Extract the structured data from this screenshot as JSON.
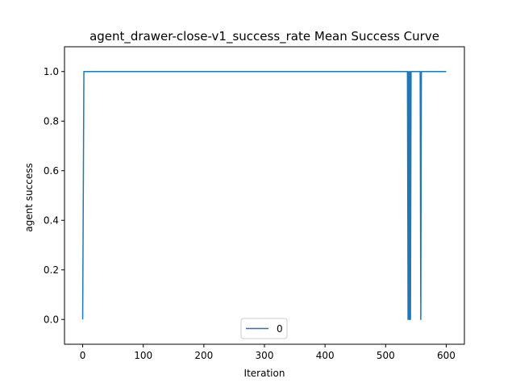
{
  "chart_data": {
    "type": "line",
    "title": "agent_drawer-close-v1_success_rate Mean Success Curve",
    "xlabel": "Iteration",
    "ylabel": "agent success",
    "xlim": [
      -30,
      630
    ],
    "ylim": [
      -0.1,
      1.1
    ],
    "x_ticks": [
      0,
      100,
      200,
      300,
      400,
      500,
      600
    ],
    "y_ticks": [
      0.0,
      0.2,
      0.4,
      0.6,
      0.8,
      1.0
    ],
    "x_tick_labels": [
      "0",
      "100",
      "200",
      "300",
      "400",
      "500",
      "600"
    ],
    "y_tick_labels": [
      "0.0",
      "0.2",
      "0.4",
      "0.6",
      "0.8",
      "1.0"
    ],
    "grid": false,
    "legend": {
      "position": "lower-center",
      "entries": [
        "0"
      ]
    },
    "series": [
      {
        "name": "0",
        "color": "#1f77b4",
        "x": [
          0,
          2,
          536,
          537,
          538,
          539,
          540,
          541,
          542,
          543,
          557,
          558,
          559,
          560,
          600
        ],
        "y": [
          0,
          1,
          1,
          0,
          1,
          0,
          1,
          0,
          1,
          1,
          1,
          0,
          1,
          1,
          1
        ]
      }
    ]
  }
}
